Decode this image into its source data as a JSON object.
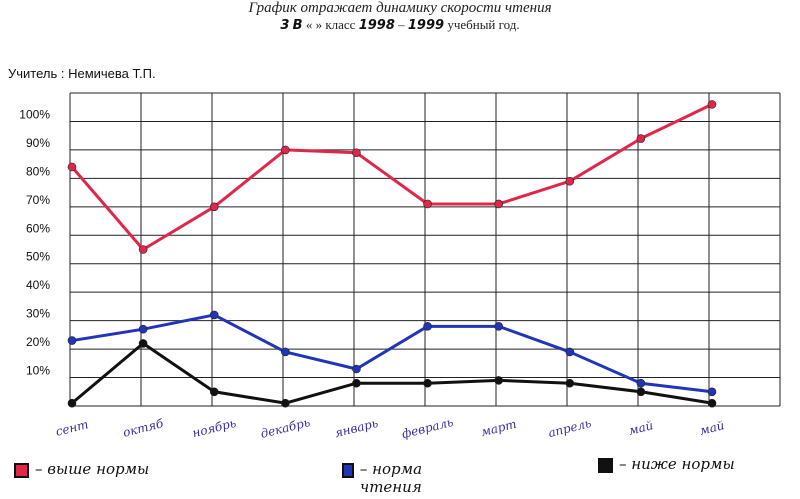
{
  "header": {
    "title": "График отражает динамику скорости чтения",
    "class_grade": "3",
    "class_letter": "В",
    "class_word": "«    » класс",
    "year_start": "1998",
    "year_end": "1999",
    "school_year_label": "учебный год."
  },
  "teacher": "Учитель : Немичева Т.П.",
  "colors": {
    "above_norm": "#e0274a",
    "norm": "#2234b8",
    "below_norm": "#111111",
    "grid": "#222222"
  },
  "chart_data": {
    "type": "line",
    "categories": [
      "сент",
      "октяб",
      "ноябрь",
      "декабрь",
      "январь",
      "февраль",
      "март",
      "апрель",
      "май",
      "май"
    ],
    "y_ticks": [
      "10%",
      "20%",
      "30%",
      "40%",
      "50%",
      "60%",
      "70%",
      "80%",
      "90%",
      "100%"
    ],
    "ylim": [
      0,
      110
    ],
    "grid": true,
    "series": [
      {
        "name": "выше нормы",
        "color": "#e0274a",
        "values": [
          84,
          55,
          70,
          90,
          89,
          71,
          71,
          79,
          94,
          106
        ]
      },
      {
        "name": "норма чтения",
        "color": "#2234b8",
        "values": [
          23,
          27,
          32,
          19,
          13,
          28,
          28,
          19,
          8,
          5
        ]
      },
      {
        "name": "ниже нормы",
        "color": "#111111",
        "values": [
          1,
          22,
          5,
          1,
          8,
          8,
          9,
          8,
          5,
          1
        ]
      }
    ],
    "legend_position": "bottom"
  },
  "legend": [
    {
      "label": "– выше нормы",
      "color": "#e0274a"
    },
    {
      "label": "– норма чтения",
      "color": "#2234b8"
    },
    {
      "label": "– ниже нормы",
      "color": "#111111"
    }
  ]
}
